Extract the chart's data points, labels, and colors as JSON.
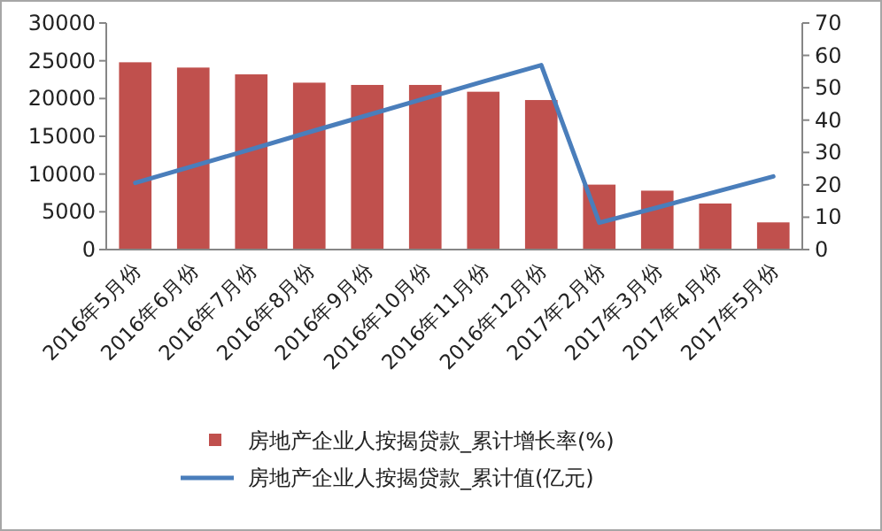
{
  "chart_data": {
    "type": "bar",
    "categories": [
      "2016年5月份",
      "2016年6月份",
      "2016年7月份",
      "2016年8月份",
      "2016年9月份",
      "2016年10月份",
      "2016年11月份",
      "2016年12月份",
      "2017年2月份",
      "2017年3月份",
      "2017年4月份",
      "2017年5月份"
    ],
    "series": [
      {
        "name": "房地产企业人按揭贷款_累计增长率(%)",
        "color": "#c0504d",
        "values": [
          24800,
          24100,
          23200,
          22100,
          21800,
          21800,
          20900,
          19800,
          8600,
          7800,
          6100,
          3600
        ]
      },
      {
        "name": "房地产企业人按揭贷款_累计值(亿元)",
        "type": "line",
        "axis": "y2",
        "color": "#4a7ebb",
        "values": [
          20.6,
          25.8,
          31,
          36.3,
          41.5,
          46.7,
          51.9,
          57,
          8.3,
          13,
          17.8,
          22.6
        ]
      }
    ],
    "ylim": [
      0,
      30000
    ],
    "yticks": [
      0,
      5000,
      10000,
      15000,
      20000,
      25000,
      30000
    ],
    "y2lim": [
      0,
      70
    ],
    "y2ticks": [
      0,
      10,
      20,
      30,
      40,
      50,
      60,
      70
    ],
    "grid": false,
    "legend": "bottom"
  }
}
